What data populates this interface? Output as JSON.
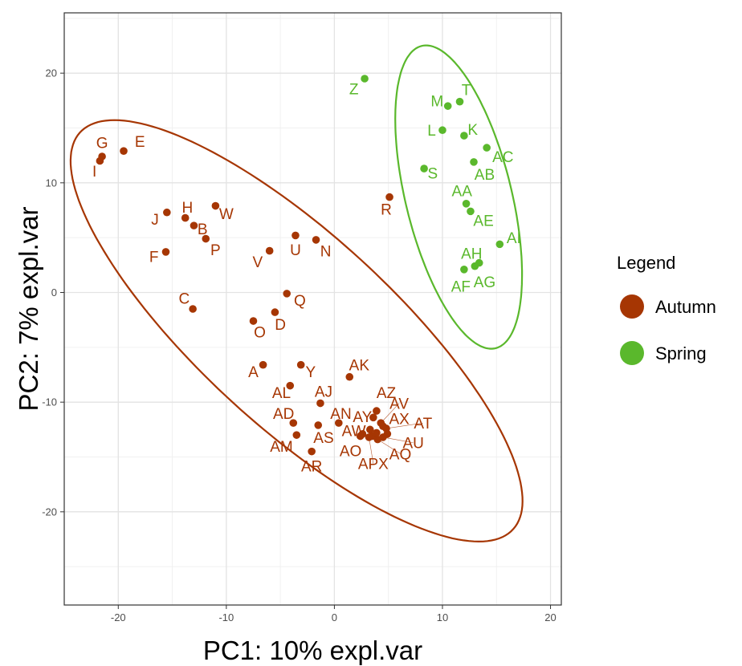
{
  "chart_data": {
    "type": "scatter",
    "xlabel": "PC1: 10% expl.var",
    "ylabel": "PC2: 7% expl.var",
    "xlim": [
      -25,
      21
    ],
    "ylim": [
      -28.5,
      25.5
    ],
    "xticks": [
      -20,
      -10,
      0,
      10,
      20
    ],
    "yticks": [
      -20,
      -10,
      0,
      10,
      20
    ],
    "xtick_labels": [
      "-20",
      "-10",
      "0",
      "10",
      "20"
    ],
    "ytick_labels": [
      "-20",
      "-10",
      "0",
      "10",
      "20"
    ],
    "grid": true,
    "legend": {
      "title": "Legend",
      "position": "right",
      "entries": [
        {
          "name": "Autumn",
          "color": "#a63603"
        },
        {
          "name": "Spring",
          "color": "#5ab82c"
        }
      ]
    },
    "ellipses": [
      {
        "group": "Autumn",
        "color": "#a63603",
        "center": [
          -3.5,
          -3.5
        ],
        "semi_major": 27,
        "semi_minor": 8.8,
        "angle_deg": -42
      },
      {
        "group": "Spring",
        "color": "#5ab82c",
        "center": [
          11.5,
          8.7
        ],
        "semi_major": 14.2,
        "semi_minor": 4.9,
        "angle_deg": -76
      }
    ],
    "series": [
      {
        "name": "Autumn",
        "color": "#a63603",
        "points": [
          {
            "label": "G",
            "x": -21.5,
            "y": 12.4,
            "lx": -21.5,
            "ly": 13.7
          },
          {
            "label": "I",
            "x": -21.7,
            "y": 12.0,
            "lx": -22.2,
            "ly": 11.1
          },
          {
            "label": "E",
            "x": -19.5,
            "y": 12.9,
            "lx": -18.0,
            "ly": 13.8
          },
          {
            "label": "J",
            "x": -15.5,
            "y": 7.3,
            "lx": -16.6,
            "ly": 6.7
          },
          {
            "label": "H",
            "x": -13.8,
            "y": 6.8,
            "lx": -13.6,
            "ly": 7.8
          },
          {
            "label": "B",
            "x": -13.0,
            "y": 6.1,
            "lx": -12.2,
            "ly": 5.8
          },
          {
            "label": "W",
            "x": -11.0,
            "y": 7.9,
            "lx": -10.0,
            "ly": 7.2
          },
          {
            "label": "P",
            "x": -11.9,
            "y": 4.9,
            "lx": -11.0,
            "ly": 3.9
          },
          {
            "label": "F",
            "x": -15.6,
            "y": 3.7,
            "lx": -16.7,
            "ly": 3.3
          },
          {
            "label": "U",
            "x": -3.6,
            "y": 5.2,
            "lx": -3.6,
            "ly": 3.9
          },
          {
            "label": "N",
            "x": -1.7,
            "y": 4.8,
            "lx": -0.8,
            "ly": 3.8
          },
          {
            "label": "V",
            "x": -6.0,
            "y": 3.8,
            "lx": -7.1,
            "ly": 2.8
          },
          {
            "label": "C",
            "x": -13.1,
            "y": -1.5,
            "lx": -13.9,
            "ly": -0.5
          },
          {
            "label": "Q",
            "x": -4.4,
            "y": -0.1,
            "lx": -3.2,
            "ly": -0.7
          },
          {
            "label": "D",
            "x": -5.5,
            "y": -1.8,
            "lx": -5.0,
            "ly": -2.9
          },
          {
            "label": "O",
            "x": -7.5,
            "y": -2.6,
            "lx": -6.9,
            "ly": -3.6
          },
          {
            "label": "R",
            "x": 5.1,
            "y": 8.7,
            "lx": 4.8,
            "ly": 7.6
          },
          {
            "label": "A",
            "x": -6.6,
            "y": -6.6,
            "lx": -7.5,
            "ly": -7.2
          },
          {
            "label": "Y",
            "x": -3.1,
            "y": -6.6,
            "lx": -2.2,
            "ly": -7.2
          },
          {
            "label": "AK",
            "x": 1.4,
            "y": -7.7,
            "lx": 2.3,
            "ly": -6.6
          },
          {
            "label": "AL",
            "x": -4.1,
            "y": -8.5,
            "lx": -4.9,
            "ly": -9.1
          },
          {
            "label": "AJ",
            "x": -1.3,
            "y": -10.1,
            "lx": -1.0,
            "ly": -9.0
          },
          {
            "label": "AD",
            "x": -3.8,
            "y": -11.9,
            "lx": -4.7,
            "ly": -11.0
          },
          {
            "label": "AM",
            "x": -3.5,
            "y": -13.0,
            "lx": -4.9,
            "ly": -14.0
          },
          {
            "label": "AS",
            "x": -1.5,
            "y": -12.1,
            "lx": -1.0,
            "ly": -13.2
          },
          {
            "label": "AR",
            "x": -2.1,
            "y": -14.5,
            "lx": -2.1,
            "ly": -15.8
          },
          {
            "label": "AN",
            "x": 0.4,
            "y": -11.9,
            "lx": 0.6,
            "ly": -11.0
          },
          {
            "label": "AO",
            "x": 2.6,
            "y": -12.9,
            "lx": 1.5,
            "ly": -14.4
          },
          {
            "label": "AW",
            "x": 3.5,
            "y": -13.1,
            "lx": 1.8,
            "ly": -12.6
          },
          {
            "label": "AY",
            "x": 3.6,
            "y": -11.4,
            "lx": 2.6,
            "ly": -11.3
          },
          {
            "label": "AZ",
            "x": 3.9,
            "y": -10.8,
            "lx": 4.8,
            "ly": -9.1
          },
          {
            "label": "AV",
            "x": 4.3,
            "y": -11.9,
            "lx": 6.0,
            "ly": -10.1
          },
          {
            "label": "AX",
            "x": 4.5,
            "y": -12.2,
            "lx": 6.0,
            "ly": -11.5
          },
          {
            "label": "AT",
            "x": 4.8,
            "y": -12.4,
            "lx": 8.2,
            "ly": -11.9
          },
          {
            "label": "AU",
            "x": 4.5,
            "y": -13.2,
            "lx": 7.3,
            "ly": -13.7
          },
          {
            "label": "AQ",
            "x": 4.0,
            "y": -13.4,
            "lx": 6.1,
            "ly": -14.7
          },
          {
            "label": "APX",
            "x": 3.2,
            "y": -13.2,
            "lx": 3.6,
            "ly": -15.6
          },
          {
            "label": "",
            "x": 3.9,
            "y": -12.8
          },
          {
            "label": "",
            "x": 4.9,
            "y": -12.9
          },
          {
            "label": "",
            "x": 3.3,
            "y": -12.5
          },
          {
            "label": "",
            "x": 2.4,
            "y": -13.1
          }
        ]
      },
      {
        "name": "Spring",
        "color": "#5ab82c",
        "points": [
          {
            "label": "Z",
            "x": 2.8,
            "y": 19.5,
            "lx": 1.8,
            "ly": 18.6
          },
          {
            "label": "M",
            "x": 10.5,
            "y": 17.0,
            "lx": 9.5,
            "ly": 17.5
          },
          {
            "label": "T",
            "x": 11.6,
            "y": 17.4,
            "lx": 12.2,
            "ly": 18.5
          },
          {
            "label": "L",
            "x": 10.0,
            "y": 14.8,
            "lx": 9.0,
            "ly": 14.8
          },
          {
            "label": "K",
            "x": 12.0,
            "y": 14.3,
            "lx": 12.8,
            "ly": 14.9
          },
          {
            "label": "AC",
            "x": 14.1,
            "y": 13.2,
            "lx": 15.6,
            "ly": 12.4
          },
          {
            "label": "AB",
            "x": 12.9,
            "y": 11.9,
            "lx": 13.9,
            "ly": 10.8
          },
          {
            "label": "S",
            "x": 8.3,
            "y": 11.3,
            "lx": 9.1,
            "ly": 10.9
          },
          {
            "label": "AA",
            "x": 12.2,
            "y": 8.1,
            "lx": 11.8,
            "ly": 9.3
          },
          {
            "label": "AE",
            "x": 12.6,
            "y": 7.4,
            "lx": 13.8,
            "ly": 6.6
          },
          {
            "label": "AI",
            "x": 15.3,
            "y": 4.4,
            "lx": 16.6,
            "ly": 5.0
          },
          {
            "label": "AH",
            "x": 13.4,
            "y": 2.7,
            "lx": 12.7,
            "ly": 3.6
          },
          {
            "label": "AF",
            "x": 12.0,
            "y": 2.1,
            "lx": 11.7,
            "ly": 0.6
          },
          {
            "label": "AG",
            "x": 13.0,
            "y": 2.4,
            "lx": 13.9,
            "ly": 1.0
          }
        ]
      }
    ]
  }
}
